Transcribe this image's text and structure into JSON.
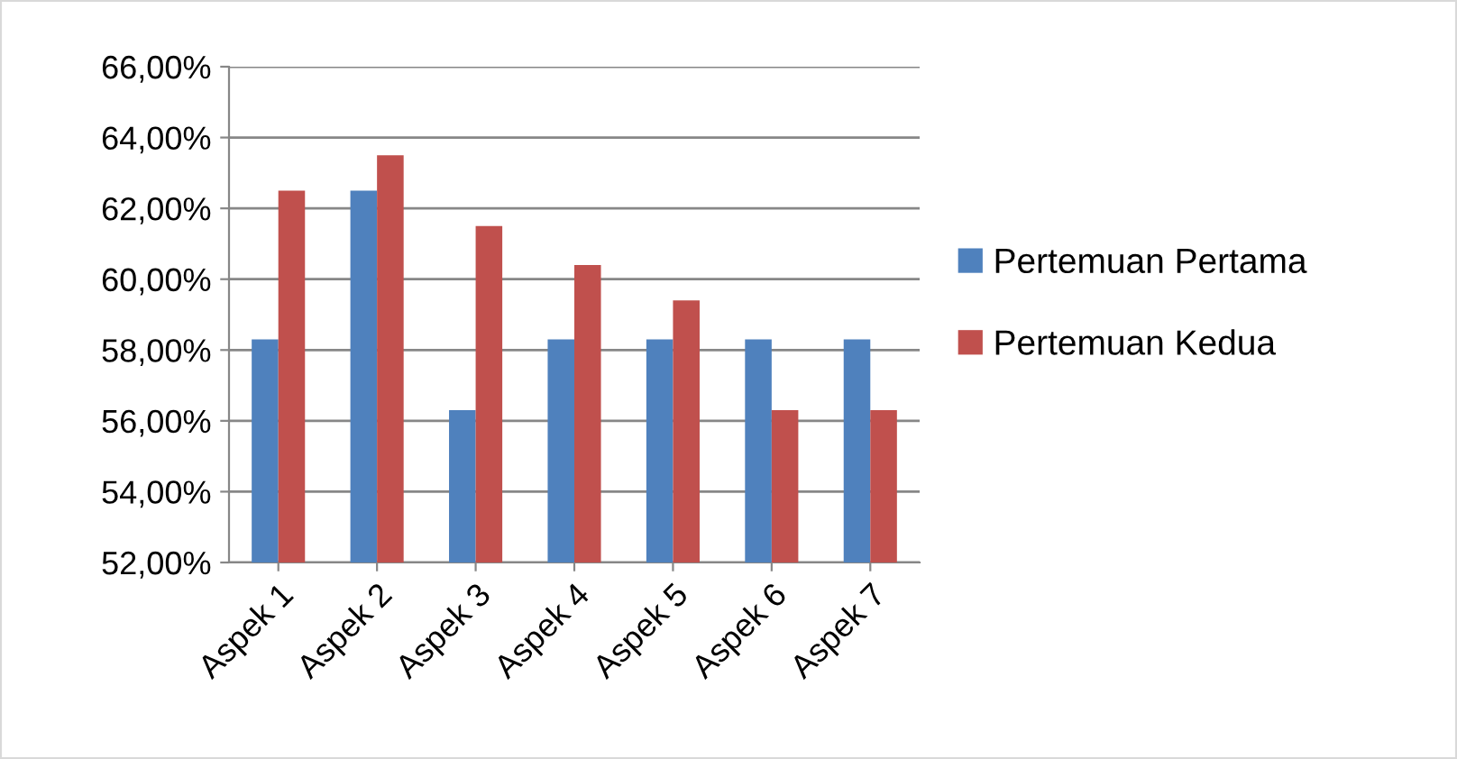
{
  "chart_data": {
    "type": "bar",
    "categories": [
      "Aspek 1",
      "Aspek 2",
      "Aspek 3",
      "Aspek 4",
      "Aspek 5",
      "Aspek 6",
      "Aspek 7"
    ],
    "series": [
      {
        "name": "Pertemuan Pertama",
        "color": "#4f81bd",
        "values": [
          58.3,
          62.5,
          56.3,
          58.3,
          58.3,
          58.3,
          58.3
        ]
      },
      {
        "name": "Pertemuan Kedua",
        "color": "#c0504d",
        "values": [
          62.5,
          63.5,
          61.5,
          60.4,
          59.4,
          56.3,
          56.3
        ]
      }
    ],
    "ylim": [
      52,
      66
    ],
    "yticks": [
      {
        "value": 52,
        "label": "52,00%"
      },
      {
        "value": 54,
        "label": "54,00%"
      },
      {
        "value": 56,
        "label": "56,00%"
      },
      {
        "value": 58,
        "label": "58,00%"
      },
      {
        "value": 60,
        "label": "60,00%"
      },
      {
        "value": 62,
        "label": "62,00%"
      },
      {
        "value": 64,
        "label": "64,00%"
      },
      {
        "value": 66,
        "label": "66,00%"
      }
    ],
    "grid": "y",
    "legend": "right"
  }
}
